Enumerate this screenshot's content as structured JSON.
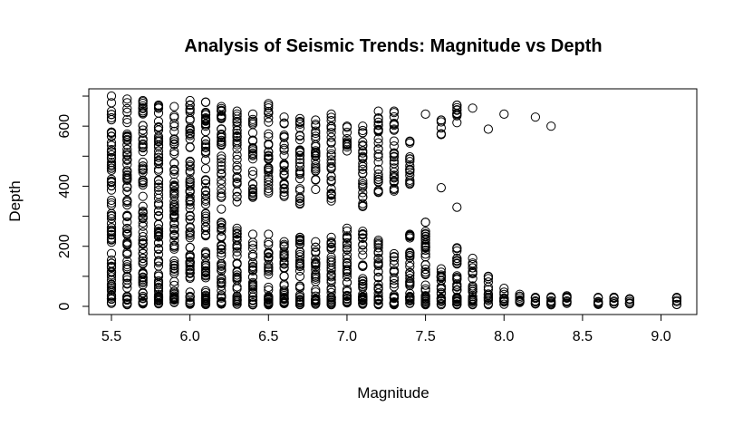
{
  "chart_data": {
    "type": "scatter",
    "title": "Analysis of Seismic Trends: Magnitude vs Depth",
    "xlabel": "Magnitude",
    "ylabel": "Depth",
    "xlim": [
      5.5,
      9.1
    ],
    "ylim": [
      0,
      700
    ],
    "x_ticks": [
      5.5,
      6.0,
      6.5,
      7.0,
      7.5,
      8.0,
      8.5,
      9.0
    ],
    "x_tick_labels": [
      "5.5",
      "6.0",
      "6.5",
      "7.0",
      "7.5",
      "8.0",
      "8.5",
      "9.0"
    ],
    "y_ticks": [
      0,
      200,
      400,
      600
    ],
    "y_tick_labels": [
      "0",
      "200",
      "400",
      "600"
    ],
    "marker": "open-circle",
    "color": "#000000",
    "grid": false,
    "legend": "none",
    "columns": [
      {
        "x": 5.5,
        "shallow_max": 300,
        "deep": [
          [
            300,
            700
          ]
        ]
      },
      {
        "x": 5.6,
        "shallow_max": 300,
        "deep": [
          [
            300,
            690
          ]
        ]
      },
      {
        "x": 5.7,
        "shallow_max": 300,
        "deep": [
          [
            300,
            685
          ]
        ]
      },
      {
        "x": 5.8,
        "shallow_max": 300,
        "deep": [
          [
            300,
            670
          ]
        ]
      },
      {
        "x": 5.9,
        "shallow_max": 300,
        "deep": [
          [
            300,
            665
          ]
        ]
      },
      {
        "x": 6.0,
        "shallow_max": 300,
        "deep": [
          [
            300,
            685
          ]
        ]
      },
      {
        "x": 6.1,
        "shallow_max": 300,
        "deep": [
          [
            300,
            680
          ]
        ]
      },
      {
        "x": 6.2,
        "shallow_max": 280,
        "deep": [
          [
            320,
            665
          ]
        ]
      },
      {
        "x": 6.3,
        "shallow_max": 260,
        "deep": [
          [
            340,
            650
          ]
        ]
      },
      {
        "x": 6.4,
        "shallow_max": 240,
        "deep": [
          [
            360,
            640
          ]
        ]
      },
      {
        "x": 6.5,
        "shallow_max": 240,
        "deep": [
          [
            370,
            675
          ]
        ]
      },
      {
        "x": 6.6,
        "shallow_max": 215,
        "deep": [
          [
            360,
            630
          ]
        ]
      },
      {
        "x": 6.7,
        "shallow_max": 230,
        "deep": [
          [
            330,
            625
          ]
        ]
      },
      {
        "x": 6.8,
        "shallow_max": 215,
        "deep": [
          [
            370,
            620
          ]
        ]
      },
      {
        "x": 6.9,
        "shallow_max": 230,
        "deep": [
          [
            350,
            640
          ]
        ]
      },
      {
        "x": 7.0,
        "shallow_max": 260,
        "deep": [
          [
            500,
            600
          ]
        ]
      },
      {
        "x": 7.1,
        "shallow_max": 250,
        "deep": [
          [
            330,
            600
          ]
        ]
      },
      {
        "x": 7.2,
        "shallow_max": 220,
        "deep": [
          [
            370,
            650
          ]
        ]
      },
      {
        "x": 7.3,
        "shallow_max": 175,
        "deep": [
          [
            380,
            650
          ]
        ]
      },
      {
        "x": 7.4,
        "shallow_max": 240,
        "deep": [
          [
            390,
            550
          ]
        ]
      },
      {
        "x": 7.5,
        "shallow_max": 280,
        "deep": [
          [
            640,
            640
          ]
        ]
      },
      {
        "x": 7.6,
        "shallow_max": 125,
        "deep": [
          [
            395,
            395
          ],
          [
            560,
            620
          ]
        ]
      },
      {
        "x": 7.7,
        "shallow_max": 195,
        "deep": [
          [
            330,
            330
          ],
          [
            580,
            670
          ]
        ]
      },
      {
        "x": 7.8,
        "shallow_max": 160,
        "deep": [
          [
            660,
            660
          ]
        ]
      },
      {
        "x": 7.9,
        "shallow_max": 100,
        "deep": [
          [
            590,
            590
          ]
        ]
      },
      {
        "x": 8.0,
        "shallow_max": 60,
        "deep": [
          [
            640,
            640
          ]
        ]
      },
      {
        "x": 8.1,
        "shallow_max": 40,
        "deep": []
      },
      {
        "x": 8.2,
        "shallow_max": 30,
        "deep": [
          [
            630,
            630
          ]
        ]
      },
      {
        "x": 8.3,
        "shallow_max": 30,
        "deep": [
          [
            600,
            600
          ]
        ]
      },
      {
        "x": 8.4,
        "shallow_max": 35,
        "deep": []
      },
      {
        "x": 8.6,
        "shallow_max": 30,
        "deep": []
      },
      {
        "x": 8.7,
        "shallow_max": 30,
        "deep": []
      },
      {
        "x": 8.8,
        "shallow_max": 25,
        "deep": []
      },
      {
        "x": 9.1,
        "shallow_max": 30,
        "deep": []
      }
    ]
  }
}
